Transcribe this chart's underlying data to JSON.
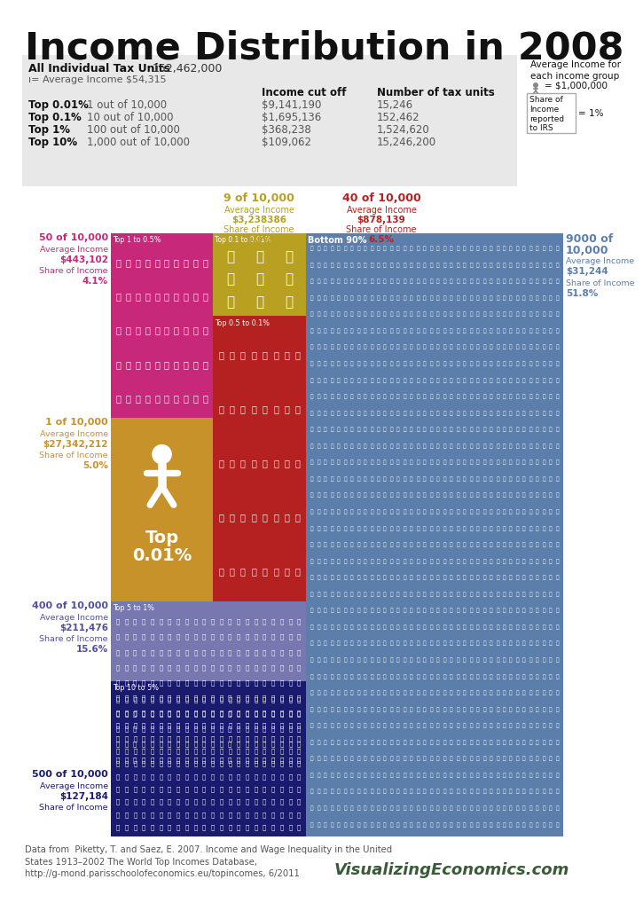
{
  "title": "Income Distribution in 2008",
  "bg_color": "#ffffff",
  "table_bg": "#e8e8e8",
  "table_data": {
    "header_bold": "All Individual Tax Units",
    "header_num": "152,462,000",
    "avg_income_line": "ı= Average Income $54,315",
    "col_headers": [
      "Income cut off",
      "Number of tax units"
    ],
    "rows": [
      [
        "Top 0.01%",
        "1 out of 10,000",
        "$9,141,190",
        "15,246"
      ],
      [
        "Top 0.1%",
        "10 out of 10,000",
        "$1,695,136",
        "152,462"
      ],
      [
        "Top 1%",
        "100 out of 10,000",
        "$368,238",
        "1,524,620"
      ],
      [
        "Top 10%",
        "1,000 out of 10,000",
        "$109,062",
        "15,246,200"
      ]
    ]
  },
  "colors": {
    "pink": "#c8287a",
    "olive": "#b8a020",
    "orange": "#c8922a",
    "red": "#b52020",
    "purple": "#7878b0",
    "navy": "#1a1a6e",
    "blue": "#5b7faa"
  },
  "footer_text": "Data from  Piketty, T. and Saez, E. 2007. Income and Wage Inequality in the United\nStates 1913–2002 The World Top Incomes Database,\nhttp://g-mond.parisschoolofeconomics.eu/topincomes, 6/2011",
  "brand": "VisualizingEconomics.com",
  "brand_color": "#3a5a3a"
}
